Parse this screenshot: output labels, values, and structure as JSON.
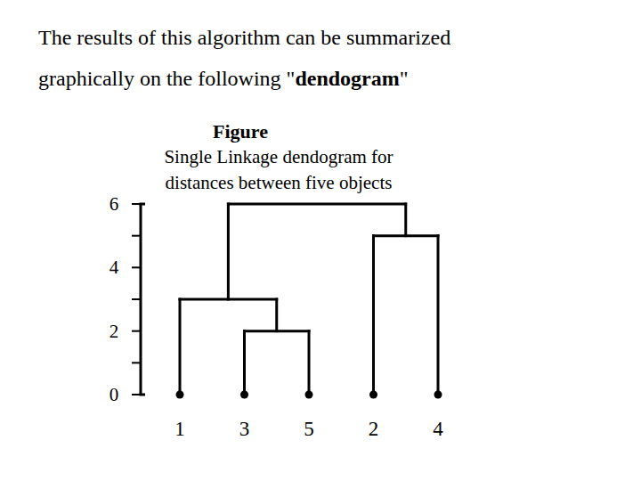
{
  "heading": [
    [
      {
        "text": "The results of this algorithm can be summarized",
        "bold": false
      }
    ],
    [
      {
        "text": "graphically on the following \"",
        "bold": false
      },
      {
        "text": "dendogram",
        "bold": true
      },
      {
        "text": "\"",
        "bold": false
      }
    ]
  ],
  "chart_data": {
    "type": "dendrogram",
    "title": "Figure",
    "subtitle": [
      "Single Linkage dendogram for",
      "distances between five objects"
    ],
    "categories": [
      "1",
      "3",
      "5",
      "2",
      "4"
    ],
    "merges": [
      {
        "pair": [
          1,
          2
        ],
        "height": 2
      },
      {
        "pair": [
          0,
          5
        ],
        "height": 3
      },
      {
        "pair": [
          3,
          4
        ],
        "height": 5
      },
      {
        "pair": [
          6,
          7
        ],
        "height": 6
      }
    ],
    "color": "#000000",
    "ylim": [
      0,
      6
    ],
    "yticks": [
      0,
      2,
      4,
      6
    ],
    "minor_yticks": [
      1,
      3,
      5
    ]
  }
}
